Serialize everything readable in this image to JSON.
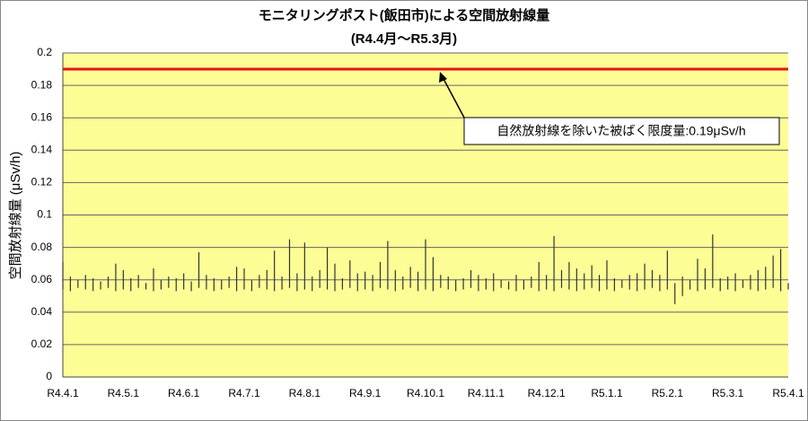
{
  "chart_data": {
    "type": "range",
    "title": "モニタリングポスト(飯田市)による空間放射線量",
    "subtitle": "(R4.4月～R5.3月)",
    "y_label": "空間放射線量 (μSv/h)",
    "categories": [
      "R4.4.1",
      null,
      null,
      null,
      null,
      null,
      null,
      null,
      "R4.5.1",
      null,
      null,
      null,
      null,
      null,
      null,
      null,
      "R4.6.1",
      null,
      null,
      null,
      null,
      null,
      null,
      null,
      "R4.7.1",
      null,
      null,
      null,
      null,
      null,
      null,
      null,
      "R4.8.1",
      null,
      null,
      null,
      null,
      null,
      null,
      null,
      "R4.9.1",
      null,
      null,
      null,
      null,
      null,
      null,
      null,
      "R4.10.1",
      null,
      null,
      null,
      null,
      null,
      null,
      null,
      "R4.11.1",
      null,
      null,
      null,
      null,
      null,
      null,
      null,
      "R4.12.1",
      null,
      null,
      null,
      null,
      null,
      null,
      null,
      "R5.1.1",
      null,
      null,
      null,
      null,
      null,
      null,
      null,
      "R5.2.1",
      null,
      null,
      null,
      null,
      null,
      null,
      null,
      "R5.3.1",
      null,
      null,
      null,
      null,
      null,
      null,
      null,
      "R5.4.1"
    ],
    "high": [
      0.071,
      0.062,
      0.06,
      0.063,
      0.061,
      0.059,
      0.062,
      0.07,
      0.066,
      0.061,
      0.063,
      0.058,
      0.067,
      0.06,
      0.062,
      0.061,
      0.064,
      0.059,
      0.077,
      0.063,
      0.061,
      0.06,
      0.062,
      0.068,
      0.067,
      0.06,
      0.063,
      0.066,
      0.078,
      0.062,
      0.085,
      0.064,
      0.083,
      0.062,
      0.066,
      0.08,
      0.07,
      0.061,
      0.072,
      0.064,
      0.065,
      0.063,
      0.071,
      0.084,
      0.066,
      0.062,
      0.068,
      0.065,
      0.085,
      0.074,
      0.063,
      0.062,
      0.06,
      0.061,
      0.066,
      0.063,
      0.061,
      0.064,
      0.06,
      0.059,
      0.063,
      0.06,
      0.062,
      0.071,
      0.063,
      0.087,
      0.066,
      0.071,
      0.067,
      0.064,
      0.069,
      0.063,
      0.072,
      0.061,
      0.06,
      0.063,
      0.064,
      0.07,
      0.066,
      0.063,
      0.078,
      0.058,
      0.062,
      0.06,
      0.073,
      0.067,
      0.088,
      0.061,
      0.062,
      0.064,
      0.06,
      0.063,
      0.066,
      0.068,
      0.075,
      0.079,
      0.058
    ],
    "low": [
      0.054,
      0.053,
      0.055,
      0.054,
      0.053,
      0.054,
      0.055,
      0.053,
      0.054,
      0.053,
      0.055,
      0.054,
      0.053,
      0.054,
      0.055,
      0.053,
      0.054,
      0.053,
      0.055,
      0.054,
      0.053,
      0.054,
      0.055,
      0.053,
      0.054,
      0.053,
      0.055,
      0.054,
      0.053,
      0.054,
      0.055,
      0.053,
      0.054,
      0.053,
      0.055,
      0.054,
      0.053,
      0.054,
      0.055,
      0.053,
      0.054,
      0.053,
      0.055,
      0.054,
      0.053,
      0.054,
      0.055,
      0.053,
      0.054,
      0.053,
      0.055,
      0.054,
      0.053,
      0.054,
      0.055,
      0.053,
      0.054,
      0.053,
      0.055,
      0.054,
      0.053,
      0.054,
      0.055,
      0.053,
      0.054,
      0.053,
      0.055,
      0.054,
      0.053,
      0.054,
      0.055,
      0.053,
      0.054,
      0.053,
      0.055,
      0.054,
      0.053,
      0.054,
      0.055,
      0.053,
      0.054,
      0.045,
      0.05,
      0.054,
      0.053,
      0.054,
      0.055,
      0.053,
      0.054,
      0.053,
      0.055,
      0.054,
      0.053,
      0.054,
      0.055,
      0.053,
      0.054
    ],
    "color": "#333333",
    "reference_line": {
      "value": 0.19,
      "color": "#e8141a"
    },
    "annotation": "自然放射線を除いた被ばく限度量:0.19μSv/h",
    "ylim": [
      0,
      0.2
    ],
    "yticks": [
      0,
      0.02,
      0.04,
      0.06,
      0.08,
      0.1,
      0.12,
      0.14,
      0.16,
      0.18,
      0.2
    ],
    "grid": true,
    "background": "#fdfd96"
  }
}
